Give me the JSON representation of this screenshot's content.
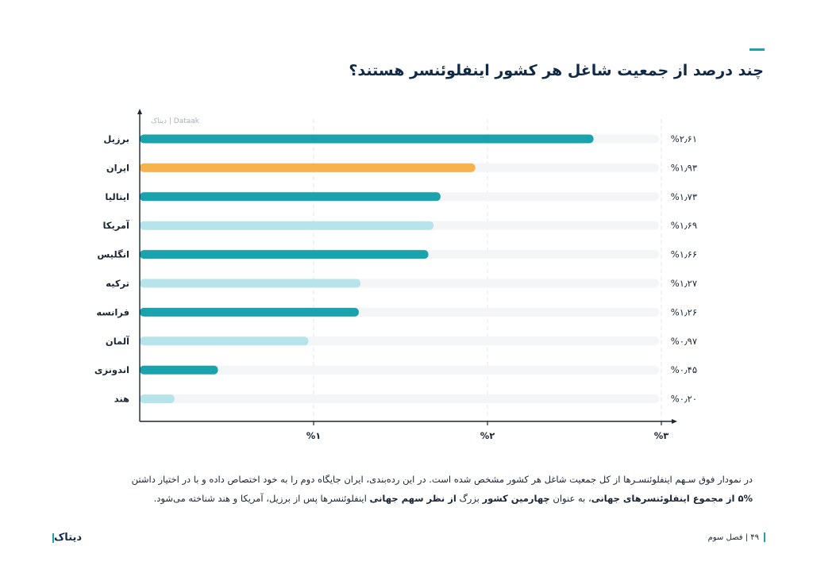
{
  "header": {
    "title": "چند درصد از جمعیت شاغل هر کشور اینفلوئنسر هستند؟",
    "accent_color": "#1aa3ad"
  },
  "watermark": "دیتاک | Dataak",
  "chart_data": {
    "type": "bar",
    "orientation": "horizontal",
    "categories": [
      "برزیل",
      "ایران",
      "ایتالیا",
      "آمریکا",
      "انگلیس",
      "ترکیه",
      "فرانسه",
      "آلمان",
      "اندونزی",
      "هند"
    ],
    "values": [
      2.61,
      1.93,
      1.73,
      1.69,
      1.66,
      1.27,
      1.26,
      0.97,
      0.45,
      0.2
    ],
    "value_labels": [
      "%۲٫۶۱",
      "%۱٫۹۳",
      "%۱٫۷۳",
      "%۱٫۶۹",
      "%۱٫۶۶",
      "%۱٫۲۷",
      "%۱٫۲۶",
      "%۰٫۹۷",
      "%۰٫۴۵",
      "%۰٫۲۰"
    ],
    "bar_colors": [
      "#1aa3ad",
      "#f8b24c",
      "#1aa3ad",
      "#b7e4ea",
      "#1aa3ad",
      "#b7e4ea",
      "#1aa3ad",
      "#b7e4ea",
      "#1aa3ad",
      "#b7e4ea"
    ],
    "track_color": "#f4f5f7",
    "xlim": [
      0,
      3
    ],
    "xticks": [
      1,
      2,
      3
    ],
    "xtick_labels": [
      "%۱",
      "%۲",
      "%۳"
    ],
    "grid": "vertical-dashed"
  },
  "description": {
    "line1": "در نمودار فوق سـهم اینفلوئنسـرها از کل جمعیت شاغل هر کشور مشخص شده است. در این رده‌بندی، ایران جایگاه دوم را به خود اختصاص داده و با در اختیار داشتن",
    "line2_bold1": "۵% از مجموع اینفلوئنسرهای جهانی",
    "line2_part1": "، به عنوان ",
    "line2_bold2": "چهارمین کشور",
    "line2_part2": " بزرگ ",
    "line2_bold3": "از نظر سهم جهانی",
    "line2_part3": " اینفلوئنسرها پس از برزیل، آمریکا و هند شناخته می‌شود."
  },
  "footer": {
    "logo": "دیتاک",
    "page": "۴۹ | فصل سوم"
  }
}
